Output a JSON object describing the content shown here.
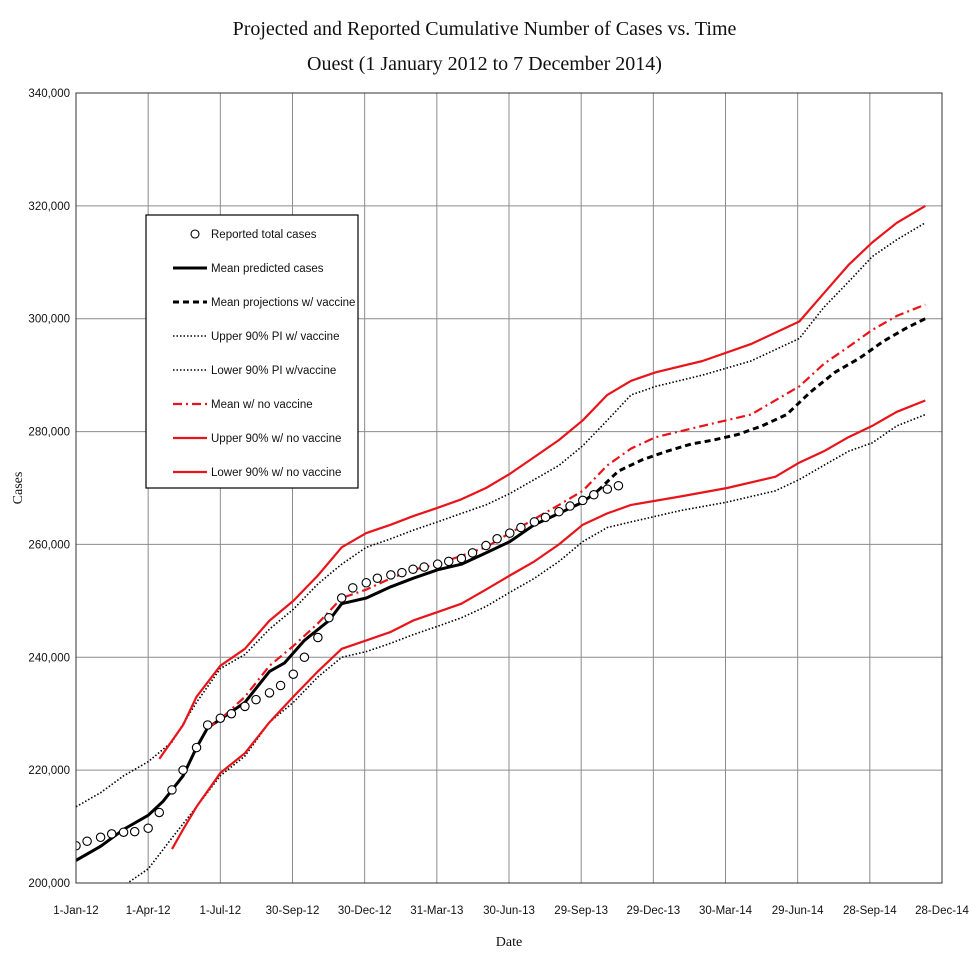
{
  "chart_data": {
    "type": "line",
    "title": "Projected and Reported Cumulative Number of Cases vs. Time",
    "subtitle": "Ouest (1 January 2012 to 7 December 2014)",
    "xlabel": "Date",
    "ylabel": "Cases",
    "xlim": [
      "2012-01-01",
      "2014-12-28"
    ],
    "ylim": [
      200000,
      340000
    ],
    "x_ticks": [
      "1-Jan-12",
      "1-Apr-12",
      "1-Jul-12",
      "30-Sep-12",
      "30-Dec-12",
      "31-Mar-13",
      "30-Jun-13",
      "29-Sep-13",
      "29-Dec-13",
      "30-Mar-14",
      "29-Jun-14",
      "28-Sep-14",
      "28-Dec-14"
    ],
    "y_ticks": [
      "200,000",
      "220,000",
      "240,000",
      "260,000",
      "280,000",
      "300,000",
      "320,000",
      "340,000"
    ],
    "grid": true,
    "legend_position": "upper-left",
    "series": [
      {
        "name": "Reported total cases",
        "style": "circles",
        "color": "#000000",
        "points": [
          [
            "2012-01-01",
            206600
          ],
          [
            "2012-01-15",
            207400
          ],
          [
            "2012-02-01",
            208100
          ],
          [
            "2012-02-15",
            208700
          ],
          [
            "2012-03-01",
            209000
          ],
          [
            "2012-03-15",
            209100
          ],
          [
            "2012-04-01",
            209700
          ],
          [
            "2012-04-15",
            212500
          ],
          [
            "2012-05-01",
            216500
          ],
          [
            "2012-05-15",
            220000
          ],
          [
            "2012-06-01",
            224000
          ],
          [
            "2012-06-15",
            228000
          ],
          [
            "2012-07-01",
            229200
          ],
          [
            "2012-07-15",
            230000
          ],
          [
            "2012-08-01",
            231300
          ],
          [
            "2012-08-15",
            232500
          ],
          [
            "2012-09-01",
            233700
          ],
          [
            "2012-09-15",
            235000
          ],
          [
            "2012-10-01",
            237000
          ],
          [
            "2012-10-15",
            240000
          ],
          [
            "2012-11-01",
            243500
          ],
          [
            "2012-11-15",
            247000
          ],
          [
            "2012-12-01",
            250500
          ],
          [
            "2012-12-15",
            252300
          ],
          [
            "2013-01-01",
            253200
          ],
          [
            "2013-01-15",
            254000
          ],
          [
            "2013-02-01",
            254600
          ],
          [
            "2013-02-15",
            255000
          ],
          [
            "2013-03-01",
            255600
          ],
          [
            "2013-03-15",
            256000
          ],
          [
            "2013-04-01",
            256500
          ],
          [
            "2013-04-15",
            257000
          ],
          [
            "2013-05-01",
            257500
          ],
          [
            "2013-05-15",
            258500
          ],
          [
            "2013-06-01",
            259800
          ],
          [
            "2013-06-15",
            261000
          ],
          [
            "2013-07-01",
            262000
          ],
          [
            "2013-07-15",
            263000
          ],
          [
            "2013-08-01",
            264000
          ],
          [
            "2013-08-15",
            264800
          ],
          [
            "2013-09-01",
            265800
          ],
          [
            "2013-09-15",
            266800
          ],
          [
            "2013-10-01",
            267800
          ],
          [
            "2013-10-15",
            268800
          ],
          [
            "2013-11-01",
            269800
          ],
          [
            "2013-11-15",
            270400
          ]
        ]
      },
      {
        "name": "Mean predicted cases",
        "style": "solid-thick",
        "color": "#000000",
        "points": [
          [
            "2012-01-01",
            204000
          ],
          [
            "2012-02-01",
            206500
          ],
          [
            "2012-03-01",
            209500
          ],
          [
            "2012-04-01",
            212000
          ],
          [
            "2012-04-20",
            214500
          ],
          [
            "2012-05-15",
            219000
          ],
          [
            "2012-06-01",
            224000
          ],
          [
            "2012-06-15",
            227500
          ],
          [
            "2012-07-01",
            229000
          ],
          [
            "2012-08-01",
            232000
          ],
          [
            "2012-09-01",
            237500
          ],
          [
            "2012-09-20",
            239000
          ],
          [
            "2012-10-15",
            243000
          ],
          [
            "2012-11-15",
            246500
          ],
          [
            "2012-12-01",
            249500
          ],
          [
            "2013-01-01",
            250500
          ],
          [
            "2013-02-01",
            252500
          ],
          [
            "2013-03-01",
            254000
          ],
          [
            "2013-04-01",
            255500
          ],
          [
            "2013-05-01",
            256500
          ],
          [
            "2013-06-01",
            258500
          ],
          [
            "2013-07-01",
            260500
          ],
          [
            "2013-08-01",
            263500
          ],
          [
            "2013-09-01",
            265500
          ],
          [
            "2013-10-01",
            267500
          ],
          [
            "2013-10-20",
            269500
          ]
        ]
      },
      {
        "name": "Mean projections w/ vaccine",
        "style": "dashed-thick",
        "color": "#000000",
        "points": [
          [
            "2013-10-20",
            269500
          ],
          [
            "2013-11-15",
            273000
          ],
          [
            "2013-12-15",
            275000
          ],
          [
            "2014-01-15",
            276500
          ],
          [
            "2014-02-15",
            277800
          ],
          [
            "2014-03-15",
            278500
          ],
          [
            "2014-04-15",
            279500
          ],
          [
            "2014-05-15",
            281000
          ],
          [
            "2014-06-15",
            283000
          ],
          [
            "2014-07-15",
            287000
          ],
          [
            "2014-08-15",
            290500
          ],
          [
            "2014-09-15",
            293000
          ],
          [
            "2014-10-15",
            296000
          ],
          [
            "2014-11-15",
            298500
          ],
          [
            "2014-12-07",
            300000
          ]
        ]
      },
      {
        "name": "Upper 90% PI w/ vaccine",
        "style": "dotted",
        "color": "#000000",
        "points": [
          [
            "2012-01-01",
            213500
          ],
          [
            "2012-02-01",
            216000
          ],
          [
            "2012-03-01",
            219000
          ],
          [
            "2012-04-01",
            221500
          ],
          [
            "2012-05-01",
            225000
          ],
          [
            "2012-06-01",
            232000
          ],
          [
            "2012-07-01",
            238000
          ],
          [
            "2012-08-01",
            240500
          ],
          [
            "2012-09-01",
            245000
          ],
          [
            "2012-10-01",
            248500
          ],
          [
            "2012-11-01",
            253000
          ],
          [
            "2012-12-01",
            256500
          ],
          [
            "2013-01-01",
            259500
          ],
          [
            "2013-02-01",
            261000
          ],
          [
            "2013-03-01",
            262500
          ],
          [
            "2013-04-01",
            264000
          ],
          [
            "2013-05-01",
            265500
          ],
          [
            "2013-06-01",
            267000
          ],
          [
            "2013-07-01",
            269000
          ],
          [
            "2013-08-01",
            271500
          ],
          [
            "2013-09-01",
            274000
          ],
          [
            "2013-10-01",
            277500
          ],
          [
            "2013-11-01",
            282000
          ],
          [
            "2013-12-01",
            286500
          ],
          [
            "2014-01-01",
            288000
          ],
          [
            "2014-03-01",
            290000
          ],
          [
            "2014-05-01",
            292500
          ],
          [
            "2014-07-01",
            296500
          ],
          [
            "2014-08-01",
            302000
          ],
          [
            "2014-09-01",
            306500
          ],
          [
            "2014-10-01",
            311000
          ],
          [
            "2014-11-01",
            314000
          ],
          [
            "2014-12-07",
            317000
          ]
        ]
      },
      {
        "name": "Lower 90% PI w/vaccine",
        "style": "dotted",
        "color": "#000000",
        "points": [
          [
            "2012-03-01",
            199500
          ],
          [
            "2012-04-01",
            202500
          ],
          [
            "2012-05-01",
            208000
          ],
          [
            "2012-06-01",
            213500
          ],
          [
            "2012-07-01",
            219000
          ],
          [
            "2012-08-01",
            222500
          ],
          [
            "2012-09-01",
            228500
          ],
          [
            "2012-10-01",
            232000
          ],
          [
            "2012-11-01",
            236500
          ],
          [
            "2012-12-01",
            240000
          ],
          [
            "2013-01-01",
            241000
          ],
          [
            "2013-02-01",
            242500
          ],
          [
            "2013-03-01",
            244000
          ],
          [
            "2013-04-01",
            245500
          ],
          [
            "2013-05-01",
            247000
          ],
          [
            "2013-06-01",
            249000
          ],
          [
            "2013-07-01",
            251500
          ],
          [
            "2013-08-01",
            254000
          ],
          [
            "2013-09-01",
            257000
          ],
          [
            "2013-10-01",
            260500
          ],
          [
            "2013-11-01",
            263000
          ],
          [
            "2013-12-01",
            264000
          ],
          [
            "2014-02-01",
            266000
          ],
          [
            "2014-04-01",
            267500
          ],
          [
            "2014-06-01",
            269500
          ],
          [
            "2014-07-01",
            271500
          ],
          [
            "2014-08-01",
            274000
          ],
          [
            "2014-09-01",
            276500
          ],
          [
            "2014-10-01",
            278000
          ],
          [
            "2014-11-01",
            281000
          ],
          [
            "2014-12-07",
            283000
          ]
        ]
      },
      {
        "name": "Mean w/ no vaccine",
        "style": "dash-dot",
        "color": "#e8141a",
        "points": [
          [
            "2012-06-15",
            227500
          ],
          [
            "2012-07-01",
            229000
          ],
          [
            "2012-08-01",
            233000
          ],
          [
            "2012-09-01",
            238500
          ],
          [
            "2012-10-01",
            242000
          ],
          [
            "2012-11-01",
            246000
          ],
          [
            "2012-12-01",
            250500
          ],
          [
            "2013-01-01",
            252000
          ],
          [
            "2013-02-01",
            254000
          ],
          [
            "2013-03-01",
            255500
          ],
          [
            "2013-04-01",
            256500
          ],
          [
            "2013-05-01",
            258000
          ],
          [
            "2013-06-01",
            259500
          ],
          [
            "2013-07-01",
            262000
          ],
          [
            "2013-08-01",
            264500
          ],
          [
            "2013-09-01",
            267000
          ],
          [
            "2013-10-01",
            269500
          ],
          [
            "2013-11-01",
            274000
          ],
          [
            "2013-12-01",
            277000
          ],
          [
            "2014-01-01",
            279000
          ],
          [
            "2014-03-01",
            281000
          ],
          [
            "2014-05-01",
            283000
          ],
          [
            "2014-07-01",
            288000
          ],
          [
            "2014-08-01",
            292000
          ],
          [
            "2014-09-01",
            295000
          ],
          [
            "2014-10-01",
            298000
          ],
          [
            "2014-11-01",
            300500
          ],
          [
            "2014-12-07",
            302500
          ]
        ]
      },
      {
        "name": "Upper 90% w/ no vaccine",
        "style": "solid",
        "color": "#e8141a",
        "points": [
          [
            "2012-04-15",
            222000
          ],
          [
            "2012-05-15",
            228000
          ],
          [
            "2012-06-01",
            233000
          ],
          [
            "2012-07-01",
            238500
          ],
          [
            "2012-08-01",
            241500
          ],
          [
            "2012-09-01",
            246500
          ],
          [
            "2012-10-01",
            250000
          ],
          [
            "2012-11-01",
            254500
          ],
          [
            "2012-12-01",
            259500
          ],
          [
            "2013-01-01",
            262000
          ],
          [
            "2013-02-01",
            263500
          ],
          [
            "2013-03-01",
            265000
          ],
          [
            "2013-04-01",
            266500
          ],
          [
            "2013-05-01",
            268000
          ],
          [
            "2013-06-01",
            270000
          ],
          [
            "2013-07-01",
            272500
          ],
          [
            "2013-08-01",
            275500
          ],
          [
            "2013-09-01",
            278500
          ],
          [
            "2013-10-01",
            282000
          ],
          [
            "2013-11-01",
            286500
          ],
          [
            "2013-12-01",
            289000
          ],
          [
            "2014-01-01",
            290500
          ],
          [
            "2014-03-01",
            292500
          ],
          [
            "2014-05-01",
            295500
          ],
          [
            "2014-07-01",
            299500
          ],
          [
            "2014-08-01",
            304500
          ],
          [
            "2014-09-01",
            309500
          ],
          [
            "2014-10-01",
            313500
          ],
          [
            "2014-11-01",
            317000
          ],
          [
            "2014-12-07",
            320000
          ]
        ]
      },
      {
        "name": "Lower 90% w/ no vaccine",
        "style": "solid",
        "color": "#e8141a",
        "points": [
          [
            "2012-05-01",
            206000
          ],
          [
            "2012-05-15",
            209500
          ],
          [
            "2012-06-01",
            213500
          ],
          [
            "2012-07-01",
            219500
          ],
          [
            "2012-08-01",
            223000
          ],
          [
            "2012-09-01",
            228500
          ],
          [
            "2012-10-01",
            233000
          ],
          [
            "2012-11-01",
            237500
          ],
          [
            "2012-12-01",
            241500
          ],
          [
            "2013-01-01",
            243000
          ],
          [
            "2013-02-01",
            244500
          ],
          [
            "2013-03-01",
            246500
          ],
          [
            "2013-04-01",
            248000
          ],
          [
            "2013-05-01",
            249500
          ],
          [
            "2013-06-01",
            252000
          ],
          [
            "2013-07-01",
            254500
          ],
          [
            "2013-08-01",
            257000
          ],
          [
            "2013-09-01",
            260000
          ],
          [
            "2013-10-01",
            263500
          ],
          [
            "2013-11-01",
            265500
          ],
          [
            "2013-12-01",
            267000
          ],
          [
            "2014-02-01",
            268500
          ],
          [
            "2014-04-01",
            270000
          ],
          [
            "2014-06-01",
            272000
          ],
          [
            "2014-07-01",
            274500
          ],
          [
            "2014-08-01",
            276500
          ],
          [
            "2014-09-01",
            279000
          ],
          [
            "2014-10-01",
            281000
          ],
          [
            "2014-11-01",
            283500
          ],
          [
            "2014-12-07",
            285500
          ]
        ]
      }
    ]
  }
}
